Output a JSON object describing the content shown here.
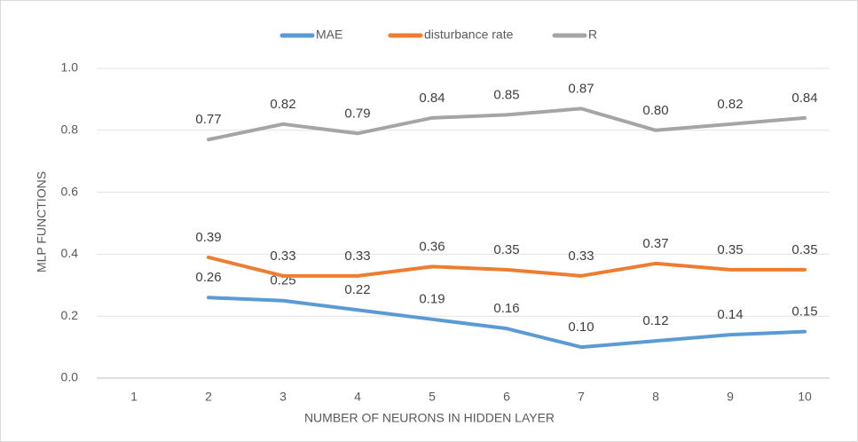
{
  "chart_data": {
    "type": "line",
    "x_label": "NUMBER OF NEURONS IN HIDDEN LAYER",
    "y_label": "MLP FUNCTIONS",
    "categories": [
      "1",
      "2",
      "3",
      "4",
      "5",
      "6",
      "7",
      "8",
      "9",
      "10"
    ],
    "series": [
      {
        "name": "MAE",
        "color": "#5b9bd5",
        "values": [
          null,
          0.26,
          0.25,
          0.22,
          0.19,
          0.16,
          0.1,
          0.12,
          0.14,
          0.15
        ],
        "value_labels": [
          null,
          "0.26",
          "0.25",
          "0.22",
          "0.19",
          "0.16",
          "0.10",
          "0.12",
          "0.14",
          "0.15"
        ]
      },
      {
        "name": "disturbance rate",
        "color": "#ed7d31",
        "values": [
          null,
          0.39,
          0.33,
          0.33,
          0.36,
          0.35,
          0.33,
          0.37,
          0.35,
          0.35
        ],
        "value_labels": [
          null,
          "0.39",
          "0.33",
          "0.33",
          "0.36",
          "0.35",
          "0.33",
          "0.37",
          "0.35",
          "0.35"
        ]
      },
      {
        "name": "R",
        "color": "#a5a5a5",
        "values": [
          null,
          0.77,
          0.82,
          0.79,
          0.84,
          0.85,
          0.87,
          0.8,
          0.82,
          0.84
        ],
        "value_labels": [
          null,
          "0.77",
          "0.82",
          "0.79",
          "0.84",
          "0.85",
          "0.87",
          "0.80",
          "0.82",
          "0.84"
        ]
      }
    ],
    "ylim": [
      0,
      1
    ],
    "yticks": [
      {
        "value": 0,
        "label": "0.0"
      },
      0.2,
      0.4,
      0.6,
      0.8,
      {
        "value": 1,
        "label": "1.0"
      }
    ],
    "grid": true,
    "legend": "top"
  }
}
